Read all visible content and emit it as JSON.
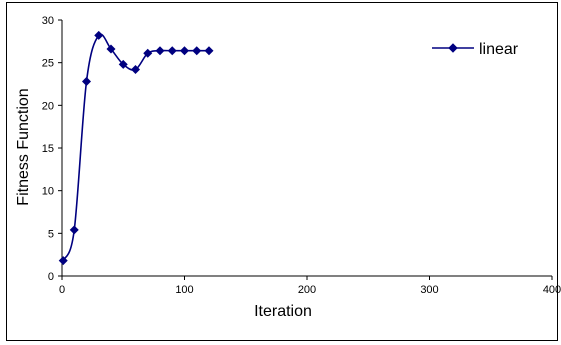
{
  "chart_data": {
    "type": "line",
    "xlabel": "Iteration",
    "ylabel": "Fitness Function",
    "xlim": [
      0,
      400
    ],
    "ylim": [
      0,
      30
    ],
    "xticks": [
      0,
      100,
      200,
      300,
      400
    ],
    "yticks": [
      0,
      5,
      10,
      15,
      20,
      25,
      30
    ],
    "grid": false,
    "legend_position": "top-right",
    "series": [
      {
        "name": "linear",
        "color": "#000080",
        "marker": "diamond",
        "x": [
          1,
          10,
          20,
          30,
          40,
          50,
          60,
          70,
          80,
          90,
          100,
          110,
          120
        ],
        "y": [
          1.8,
          5.4,
          22.8,
          28.2,
          26.6,
          24.8,
          24.2,
          26.1,
          26.4,
          26.4,
          26.4,
          26.4,
          26.4
        ]
      }
    ]
  }
}
